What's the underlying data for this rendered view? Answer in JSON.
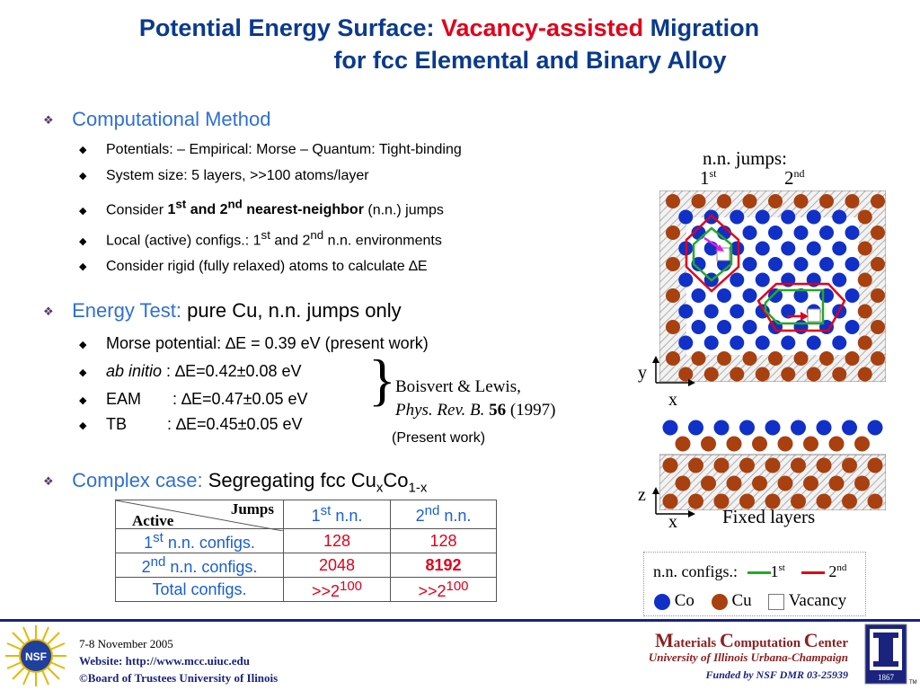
{
  "title": {
    "part1": "Potential Energy Surface: ",
    "part2": "Vacancy-assisted",
    "part3": " Migration",
    "line2": "for fcc Elemental and Binary Alloy"
  },
  "section1": {
    "heading": "Computational Method",
    "b1": "Potentials: – Empirical:  Morse    – Quantum: Tight-binding",
    "b2": "System size: 5 layers, >>100 atoms/layer",
    "b3_pre": "Consider ",
    "b3_1st": "1",
    "b3_st": "st",
    "b3_and": " and 2",
    "b3_nd": "nd",
    "b3_bold": " nearest-neighbor",
    "b3_post": " (n.n.) jumps",
    "b4_pre": "Local (active) configs.: 1",
    "b4_st": "st",
    "b4_mid": " and 2",
    "b4_nd": "nd",
    "b4_post": " n.n. environments",
    "b5": "Consider rigid (fully relaxed) atoms to calculate ∆E"
  },
  "section2": {
    "heading_colored": "Energy Test: ",
    "heading_black": "pure Cu, n.n. jumps only",
    "b1": "Morse potential: ∆E = 0.39 eV (present work)",
    "b2_italic": "ab initio",
    "b2_rest": " : ∆E=0.42±0.08 eV",
    "b3": "EAM       : ∆E=0.47±0.05 eV",
    "b4": "TB         : ∆E=0.45±0.05 eV",
    "brace": "}",
    "ref1": "Boisvert & Lewis,",
    "ref2_italic": "Phys. Rev. B.",
    "ref2_bold": " 56",
    "ref2_year": " (1997)",
    "present": "(Present work)"
  },
  "section3": {
    "heading_colored": "Complex case: ",
    "heading_black": "Segregating fcc Cu",
    "sub_x": "x",
    "co": "Co",
    "sub_1x": "1-x"
  },
  "table": {
    "corner_jumps": "Jumps",
    "corner_active": "Active",
    "col1": "1",
    "col1_sup": "st",
    "col1_post": " n.n.",
    "col2": "2",
    "col2_sup": "nd",
    "col2_post": " n.n.",
    "rows": [
      {
        "h": "1",
        "hs": "st",
        "hp": " n.n. configs.",
        "v1": "128",
        "v2": "128"
      },
      {
        "h": "2",
        "hs": "nd",
        "hp": " n.n. configs.",
        "v1": "2048",
        "v2": "8192"
      },
      {
        "h": "Total configs.",
        "hs": "",
        "hp": "",
        "v1": ">>2",
        "v1s": "100",
        "v2": ">>2",
        "v2s": "100"
      }
    ]
  },
  "diagram": {
    "jumps_label": "n.n. jumps:",
    "first": "1",
    "first_sup": "st",
    "second": "2",
    "second_sup": "nd",
    "axis_y": "y",
    "axis_x": "x",
    "axis_z": "z",
    "axis_x2": "x",
    "fixed_layers": "Fixed layers"
  },
  "legend": {
    "configs": "n.n. configs.:",
    "first": "1",
    "first_sup": "st",
    "second": "2",
    "second_sup": "nd",
    "co": "Co",
    "cu": "Cu",
    "vacancy": "Vacancy",
    "color_co": "#1030c8",
    "color_cu": "#a84010",
    "color_first": "#22aa22",
    "color_second": "#e0001b"
  },
  "footer": {
    "date": "7-8 November 2005",
    "website": "Website:  http://www.mcc.uiuc.edu",
    "copyright": "©Board of Trustees University of Ilinois",
    "mcc_M": "M",
    "mcc_aterials": "aterials ",
    "mcc_C": "C",
    "mcc_omputation": "omputation ",
    "mcc_C2": "C",
    "mcc_enter": "enter",
    "univ": "University of Illinois Urbana-Champaign",
    "funded": "Funded by NSF DMR 03-25939",
    "nsf": "NSF",
    "year": "1867",
    "tm": "TM"
  }
}
